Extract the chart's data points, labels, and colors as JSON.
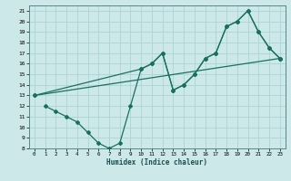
{
  "xlabel": "Humidex (Indice chaleur)",
  "background_color": "#cce8e8",
  "grid_color": "#aad4d4",
  "line_color": "#1a7060",
  "xlim": [
    -0.5,
    23.5
  ],
  "ylim": [
    8,
    21.5
  ],
  "xticks": [
    0,
    1,
    2,
    3,
    4,
    5,
    6,
    7,
    8,
    9,
    10,
    11,
    12,
    13,
    14,
    15,
    16,
    17,
    18,
    19,
    20,
    21,
    22,
    23
  ],
  "yticks": [
    8,
    9,
    10,
    11,
    12,
    13,
    14,
    15,
    16,
    17,
    18,
    19,
    20,
    21
  ],
  "line1_x": [
    0,
    10,
    11,
    12,
    13,
    14,
    15,
    16,
    17,
    18,
    19,
    20,
    21,
    22,
    23
  ],
  "line1_y": [
    13,
    15.5,
    16,
    17,
    13.5,
    14,
    15,
    16.5,
    17,
    19.5,
    20,
    21,
    19,
    17.5,
    16.5
  ],
  "line2_x": [
    0,
    23
  ],
  "line2_y": [
    13,
    16.5
  ],
  "line3_x": [
    1,
    2,
    3,
    4,
    5,
    6,
    7,
    8,
    9,
    10,
    11,
    12,
    13,
    14,
    15,
    16,
    17,
    18,
    19,
    20,
    21,
    22,
    23
  ],
  "line3_y": [
    12,
    11.5,
    11,
    10.5,
    9.5,
    8.5,
    8,
    8.5,
    12,
    15.5,
    16,
    17,
    13.5,
    14,
    15,
    16.5,
    17,
    19.5,
    20,
    21,
    19,
    17.5,
    16.5
  ]
}
